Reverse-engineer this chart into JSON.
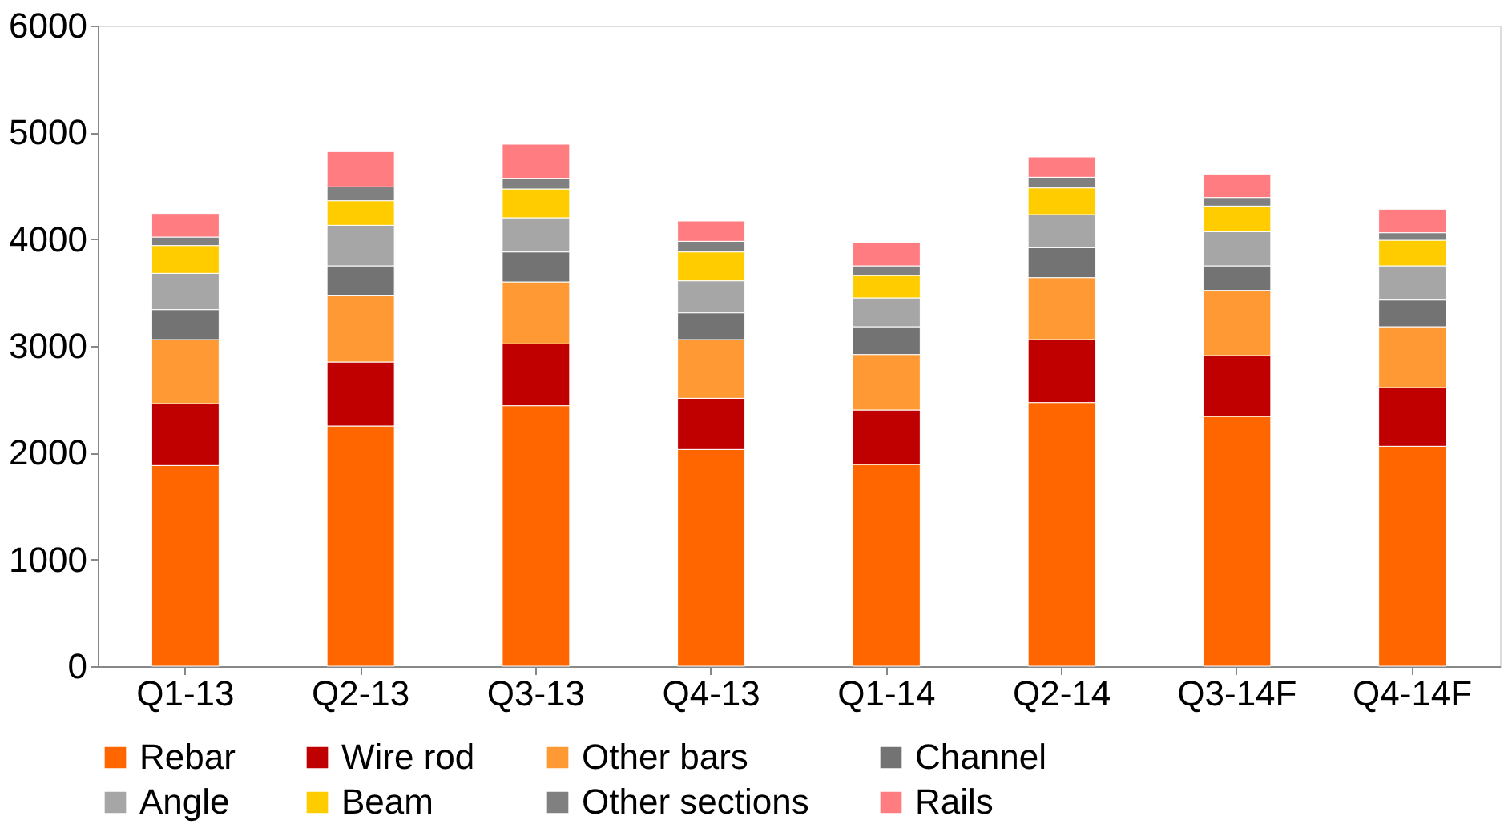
{
  "chart_data": {
    "type": "bar",
    "stacked": true,
    "categories": [
      "Q1-13",
      "Q2-13",
      "Q3-13",
      "Q4-13",
      "Q1-14",
      "Q2-14",
      "Q3-14F",
      "Q4-14F"
    ],
    "series": [
      {
        "name": "Rebar",
        "color": "#ff6600",
        "values": [
          1880,
          2250,
          2440,
          2030,
          1890,
          2470,
          2340,
          2060
        ]
      },
      {
        "name": "Wire rod",
        "color": "#c00000",
        "values": [
          580,
          600,
          580,
          480,
          510,
          590,
          570,
          550
        ]
      },
      {
        "name": "Other bars",
        "color": "#ff9933",
        "values": [
          600,
          620,
          580,
          550,
          520,
          580,
          610,
          570
        ]
      },
      {
        "name": "Channel",
        "color": "#737373",
        "values": [
          280,
          280,
          280,
          250,
          260,
          280,
          230,
          250
        ]
      },
      {
        "name": "Angle",
        "color": "#a6a6a6",
        "values": [
          340,
          380,
          320,
          300,
          270,
          310,
          320,
          320
        ]
      },
      {
        "name": "Beam",
        "color": "#ffcc00",
        "values": [
          260,
          230,
          270,
          270,
          210,
          250,
          240,
          240
        ]
      },
      {
        "name": "Other sections",
        "color": "#808080",
        "values": [
          80,
          130,
          100,
          100,
          90,
          100,
          80,
          70
        ]
      },
      {
        "name": "Rails",
        "color": "#ff7c80",
        "values": [
          220,
          330,
          320,
          190,
          220,
          190,
          220,
          220
        ]
      }
    ],
    "ylim": [
      0,
      6000
    ],
    "yticks": [
      0,
      1000,
      2000,
      3000,
      4000,
      5000,
      6000
    ],
    "grid": false,
    "legend": "bottom"
  }
}
